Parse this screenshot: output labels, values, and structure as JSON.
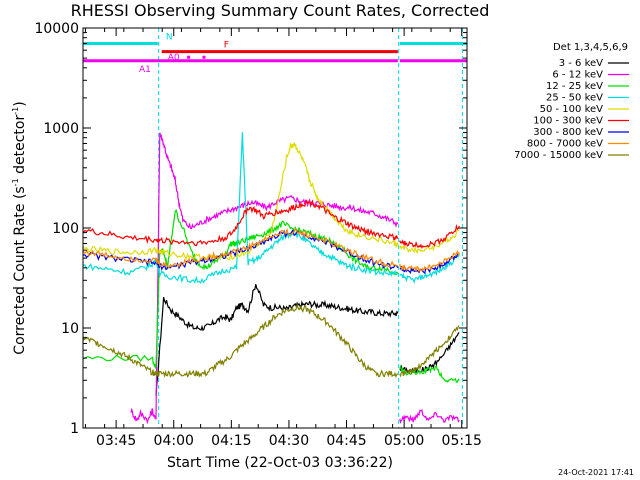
{
  "chart_data": {
    "type": "line",
    "title": "RHESSI Observing Summary Count Rates, Corrected",
    "xlabel": "Start Time (22-Oct-03 03:36:22)",
    "ylabel_main": "Corrected Count Rate (s",
    "ylabel_sup": "-1",
    "ylabel_mid": " detector",
    "ylabel_end": ")",
    "yscale": "log",
    "ylim": [
      1,
      10000
    ],
    "xlim_minutes": [
      0,
      100
    ],
    "x_ticks": [
      {
        "label": "03:45",
        "minute": 8.63
      },
      {
        "label": "04:00",
        "minute": 23.63
      },
      {
        "label": "04:15",
        "minute": 38.63
      },
      {
        "label": "04:30",
        "minute": 53.63
      },
      {
        "label": "04:45",
        "minute": 68.63
      },
      {
        "label": "05:00",
        "minute": 83.63
      },
      {
        "label": "05:15",
        "minute": 98.63
      }
    ],
    "y_ticks": [
      {
        "label": "1",
        "value": 1
      },
      {
        "label": "10",
        "value": 10
      },
      {
        "label": "100",
        "value": 100
      },
      {
        "label": "1000",
        "value": 1000
      },
      {
        "label": "10000",
        "value": 10000
      }
    ],
    "legend_header": "Det 1,3,4,5,6,9",
    "series": [
      {
        "name": "3 - 6 keV",
        "color": "#000000",
        "x": [
          19,
          21,
          23,
          25,
          27,
          29,
          31,
          33,
          35,
          37,
          38.5,
          40,
          41.5,
          43,
          45,
          47,
          49,
          51,
          53,
          55,
          57,
          59,
          61,
          63,
          65,
          67,
          69,
          71,
          73,
          75,
          77,
          79,
          81,
          82
        ],
        "y": [
          2,
          20,
          15,
          13,
          11,
          10,
          10,
          10.5,
          12,
          13,
          12,
          16,
          17,
          15,
          28,
          17,
          16,
          16,
          15.5,
          16.5,
          17,
          17.5,
          17,
          17,
          16.5,
          16,
          15.5,
          15,
          14.5,
          14.5,
          14,
          14,
          14,
          14
        ]
      },
      {
        "name": "6 - 12 keV",
        "color": "#ee00ee",
        "x": [
          12.5,
          14,
          15,
          17,
          18,
          19,
          20,
          21,
          22,
          23,
          24,
          25,
          26,
          28,
          30,
          32,
          34,
          36,
          38,
          40,
          42,
          44,
          46,
          48,
          50,
          52,
          54,
          56,
          58,
          60,
          62,
          64,
          66,
          68,
          70,
          72,
          74,
          76,
          78,
          80,
          82
        ],
        "y": [
          1.5,
          1.2,
          1.4,
          1.2,
          1.5,
          1.2,
          900,
          700,
          500,
          400,
          300,
          180,
          120,
          100,
          110,
          120,
          130,
          140,
          150,
          160,
          170,
          180,
          170,
          160,
          180,
          190,
          200,
          190,
          180,
          180,
          175,
          170,
          165,
          160,
          160,
          150,
          145,
          140,
          130,
          120,
          110
        ]
      },
      {
        "name": "12 - 25 keV",
        "color": "#00dd00",
        "x": [
          0,
          10,
          18,
          19,
          20,
          21,
          22,
          24,
          26,
          28,
          30,
          32,
          34,
          35.5,
          37,
          38.5,
          40,
          42,
          44,
          46,
          48,
          50,
          52,
          54,
          56,
          58,
          60,
          62,
          64,
          66,
          68,
          70,
          72,
          74,
          76,
          78,
          80,
          82
        ],
        "y": [
          5,
          5,
          5,
          4,
          60,
          58,
          40,
          150,
          100,
          60,
          45,
          40,
          45,
          50,
          55,
          70,
          70,
          75,
          80,
          85,
          90,
          100,
          110,
          100,
          95,
          90,
          85,
          80,
          75,
          65,
          60,
          50,
          45,
          40,
          40,
          40,
          38,
          35
        ]
      },
      {
        "name": "25 - 50 keV",
        "color": "#00dddd",
        "x": [
          0,
          4,
          8,
          12,
          16,
          18,
          19,
          20,
          22,
          25,
          28,
          31,
          34,
          37,
          40,
          41.5,
          43,
          45,
          47,
          49,
          51,
          53,
          55,
          57,
          59,
          61,
          63,
          65,
          67,
          69,
          71,
          74,
          77,
          80,
          82
        ],
        "y": [
          42,
          40,
          38,
          36,
          40,
          44,
          48,
          35,
          33,
          32,
          30,
          30,
          34,
          38,
          40,
          900,
          45,
          48,
          55,
          65,
          75,
          85,
          90,
          80,
          70,
          60,
          55,
          50,
          45,
          42,
          40,
          38,
          36,
          35,
          35
        ]
      },
      {
        "name": "50 - 100 keV",
        "color": "#dddd00",
        "x": [
          0,
          4,
          8,
          12,
          16,
          19,
          20,
          22,
          25,
          28,
          31,
          34,
          37,
          40,
          43,
          46,
          49,
          51,
          53,
          54,
          55,
          56,
          57,
          58,
          59,
          60,
          61,
          62,
          64,
          66,
          68,
          70,
          72,
          75,
          78,
          81,
          82
        ],
        "y": [
          62,
          60,
          58,
          57,
          58,
          60,
          58,
          56,
          54,
          52,
          51,
          50,
          51,
          53,
          58,
          70,
          90,
          200,
          500,
          650,
          700,
          600,
          500,
          400,
          300,
          250,
          200,
          180,
          150,
          120,
          100,
          90,
          85,
          80,
          75,
          70,
          68
        ]
      },
      {
        "name": "100 - 300 keV",
        "color": "#ff0000",
        "x": [
          0,
          4,
          8,
          12,
          16,
          19,
          20,
          22,
          25,
          28,
          31,
          34,
          37,
          39,
          41,
          43,
          45,
          47,
          49,
          51,
          53,
          55,
          57,
          59,
          61,
          63,
          65,
          67,
          69,
          71,
          73,
          75,
          78,
          81,
          82
        ],
        "y": [
          95,
          90,
          85,
          80,
          78,
          76,
          75,
          74,
          73,
          72,
          71,
          74,
          80,
          90,
          120,
          160,
          150,
          130,
          140,
          145,
          150,
          160,
          175,
          180,
          170,
          150,
          130,
          120,
          110,
          100,
          95,
          90,
          85,
          80,
          80
        ]
      },
      {
        "name": "300 - 800 keV",
        "color": "#0000ee",
        "x": [
          0,
          4,
          8,
          12,
          16,
          19,
          20,
          22,
          25,
          28,
          31,
          34,
          37,
          40,
          43,
          46,
          49,
          52,
          55,
          58,
          61,
          64,
          67,
          70,
          73,
          76,
          79,
          82
        ],
        "y": [
          55,
          52,
          50,
          48,
          46,
          45,
          42,
          40,
          42,
          45,
          47,
          50,
          53,
          57,
          62,
          70,
          80,
          88,
          90,
          85,
          78,
          70,
          62,
          55,
          50,
          45,
          42,
          40
        ]
      },
      {
        "name": "800 - 7000 keV",
        "color": "#ff8800",
        "x": [
          0,
          4,
          8,
          12,
          16,
          19,
          20,
          22,
          25,
          28,
          31,
          34,
          37,
          40,
          43,
          46,
          49,
          52,
          55,
          58,
          61,
          64,
          67,
          70,
          73,
          76,
          79,
          82
        ],
        "y": [
          58,
          55,
          52,
          50,
          48,
          47,
          44,
          42,
          44,
          47,
          49,
          52,
          55,
          59,
          64,
          72,
          82,
          90,
          92,
          87,
          80,
          72,
          64,
          57,
          52,
          47,
          44,
          42
        ]
      },
      {
        "name": "7000 - 15000 keV",
        "color": "#808000",
        "x": [
          0,
          2,
          4,
          6,
          8,
          10,
          12,
          14,
          16,
          18,
          19,
          20,
          22,
          24,
          26,
          28,
          30,
          32,
          34,
          36,
          38,
          40,
          42,
          44,
          46,
          48,
          50,
          52,
          54,
          56,
          58,
          60,
          62,
          64,
          66,
          68,
          70,
          72,
          74,
          76,
          78,
          80,
          82
        ],
        "y": [
          8,
          7.5,
          7,
          6.5,
          6,
          5.5,
          5,
          4.5,
          4,
          3.6,
          3.5,
          3.5,
          3.5,
          3.5,
          3.5,
          3.5,
          3.5,
          3.5,
          4,
          4.5,
          5,
          6,
          7,
          8,
          9.5,
          11,
          13,
          14.5,
          15.5,
          16,
          15.5,
          14,
          12.5,
          11,
          9,
          7.5,
          6,
          4.8,
          4,
          3.5,
          3.5,
          3.5,
          3.5
        ]
      }
    ],
    "tail_series": [
      {
        "color": "#000000",
        "x": [
          82.5,
          84,
          86,
          88,
          90,
          92,
          94,
          96,
          98
        ],
        "y": [
          4,
          3.8,
          3.7,
          3.8,
          4,
          4.5,
          5.5,
          7,
          9
        ]
      },
      {
        "color": "#ee00ee",
        "x": [
          82.5,
          84,
          86,
          88,
          90,
          92,
          94,
          96,
          98
        ],
        "y": [
          1.2,
          1.3,
          1.2,
          1.5,
          1.2,
          1.4,
          1.2,
          1.3,
          1.2
        ]
      },
      {
        "color": "#00dd00",
        "x": [
          82.5,
          84,
          86,
          88,
          90,
          92,
          94,
          96,
          98
        ],
        "y": [
          4,
          3.5,
          3.5,
          3.6,
          3.8,
          4,
          3,
          3,
          3
        ]
      },
      {
        "color": "#00dddd",
        "x": [
          82.5,
          84,
          86,
          88,
          90,
          92,
          94,
          96,
          98
        ],
        "y": [
          33,
          32,
          30,
          32,
          34,
          36,
          40,
          45,
          55
        ]
      },
      {
        "color": "#dddd00",
        "x": [
          82.5,
          84,
          86,
          88,
          90,
          92,
          94,
          96,
          98
        ],
        "y": [
          65,
          62,
          60,
          60,
          62,
          66,
          72,
          80,
          95
        ]
      },
      {
        "color": "#ff0000",
        "x": [
          82.5,
          84,
          86,
          88,
          90,
          92,
          94,
          96,
          98
        ],
        "y": [
          72,
          70,
          68,
          67,
          68,
          72,
          78,
          90,
          105
        ]
      },
      {
        "color": "#0000ee",
        "x": [
          82.5,
          84,
          86,
          88,
          90,
          92,
          94,
          96,
          98
        ],
        "y": [
          40,
          38,
          37,
          37,
          38,
          40,
          44,
          50,
          55
        ]
      },
      {
        "color": "#ff8800",
        "x": [
          82.5,
          84,
          86,
          88,
          90,
          92,
          94,
          96,
          98
        ],
        "y": [
          42,
          40,
          39,
          39,
          40,
          42,
          46,
          52,
          57
        ]
      },
      {
        "color": "#808000",
        "x": [
          82.5,
          84,
          86,
          88,
          90,
          92,
          94,
          96,
          98
        ],
        "y": [
          3.5,
          3.5,
          3.8,
          4.2,
          5,
          6,
          7,
          8.5,
          10.5
        ]
      }
    ],
    "flags": [
      {
        "label": "N",
        "color": "#00dddd",
        "value": 7000,
        "segments": [
          [
            0,
            19.5
          ],
          [
            82.5,
            100
          ]
        ]
      },
      {
        "label": "F",
        "color": "#ee0000",
        "value": 5800,
        "segments": [
          [
            20.5,
            82
          ]
        ]
      },
      {
        "label": "A1",
        "color": "#ee00ee",
        "value": 4700,
        "segments": [
          [
            0,
            82
          ],
          [
            82.5,
            100
          ]
        ]
      }
    ],
    "attenuator_marks": {
      "label": "A0",
      "color": "#ee00ee",
      "value": 5100,
      "dots_minutes": [
        27.5,
        31.5
      ]
    },
    "vertical_markers": {
      "color": "#00dddd",
      "minutes": [
        0,
        19.7,
        82.2,
        98.8
      ]
    },
    "timestamp": "24-Oct-2021 17:41"
  }
}
